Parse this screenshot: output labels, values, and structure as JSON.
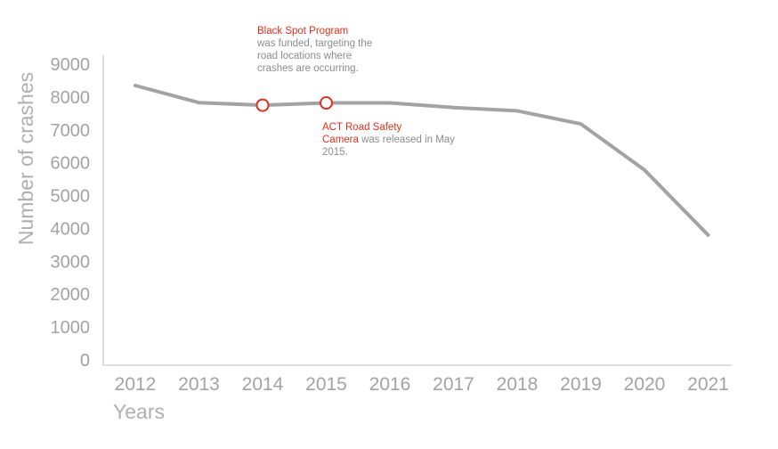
{
  "chart_data": {
    "type": "line",
    "x": [
      "2012",
      "2013",
      "2014",
      "2015",
      "2016",
      "2017",
      "2018",
      "2019",
      "2020",
      "2021"
    ],
    "series": [
      {
        "values": [
          8350,
          7830,
          7750,
          7820,
          7820,
          7680,
          7580,
          7180,
          5780,
          3800
        ]
      }
    ],
    "xlabel": "Years",
    "ylabel": "Number of crashes",
    "ylim": [
      0,
      9000
    ],
    "yticks": [
      "0",
      "1000",
      "2000",
      "3000",
      "4000",
      "5000",
      "6000",
      "7000",
      "8000",
      "9000"
    ],
    "grid": false,
    "line_color": "#a3a3a3",
    "highlight_color": "#e0301e",
    "highlighted_points": [
      {
        "x": "2014",
        "value": 7750
      },
      {
        "x": "2015",
        "value": 7820
      }
    ],
    "annotations": [
      {
        "highlight": "Black Spot Program",
        "text": "was funded, targeting the road locations where crashes are occurring."
      },
      {
        "highlight_line1": "ACT Road Safety",
        "highlight_line2": "Camera",
        "text": "was released in May 2015."
      }
    ]
  }
}
